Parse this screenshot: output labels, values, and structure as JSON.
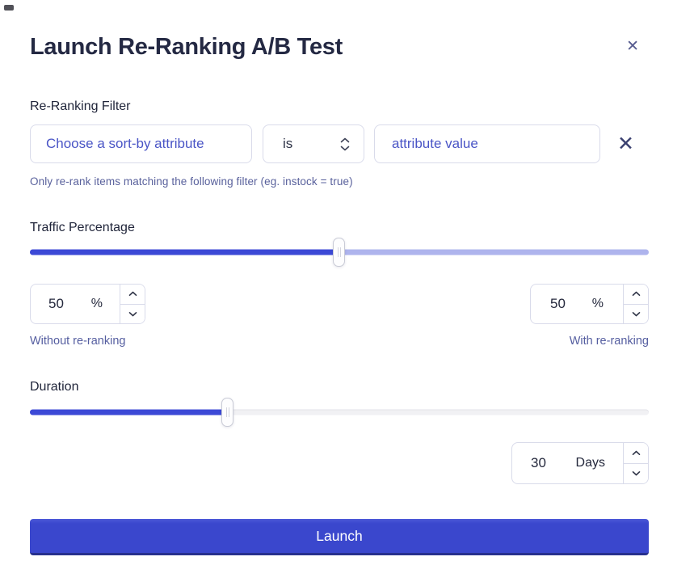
{
  "colors": {
    "accent_indigo": "#3c49d6",
    "traffic_track_unfilled": "#aeb4ed",
    "duration_track_unfilled": "#f1f1f4",
    "launch_button_blue": "#3a48cf",
    "placeholder_indigo": "#4a55c6",
    "muted_label_indigo": "#59619c",
    "text_dark": "#232840"
  },
  "modal": {
    "title": "Launch Re-Ranking A/B Test",
    "close_glyph": "✕"
  },
  "filter": {
    "label": "Re-Ranking Filter",
    "attribute_placeholder": "Choose a sort-by attribute",
    "operator": "is",
    "value_placeholder": "attribute value",
    "clear_glyph": "✕",
    "helper": "Only re-rank items matching the following filter (eg. instock = true)"
  },
  "traffic": {
    "label": "Traffic Percentage",
    "slider_percent": 50,
    "without": {
      "value": "50",
      "unit": "%",
      "label": "Without re-ranking"
    },
    "with": {
      "value": "50",
      "unit": "%",
      "label": "With re-ranking"
    }
  },
  "duration": {
    "label": "Duration",
    "slider_percent": 32,
    "value": "30",
    "unit": "Days"
  },
  "launch": {
    "label": "Launch"
  }
}
